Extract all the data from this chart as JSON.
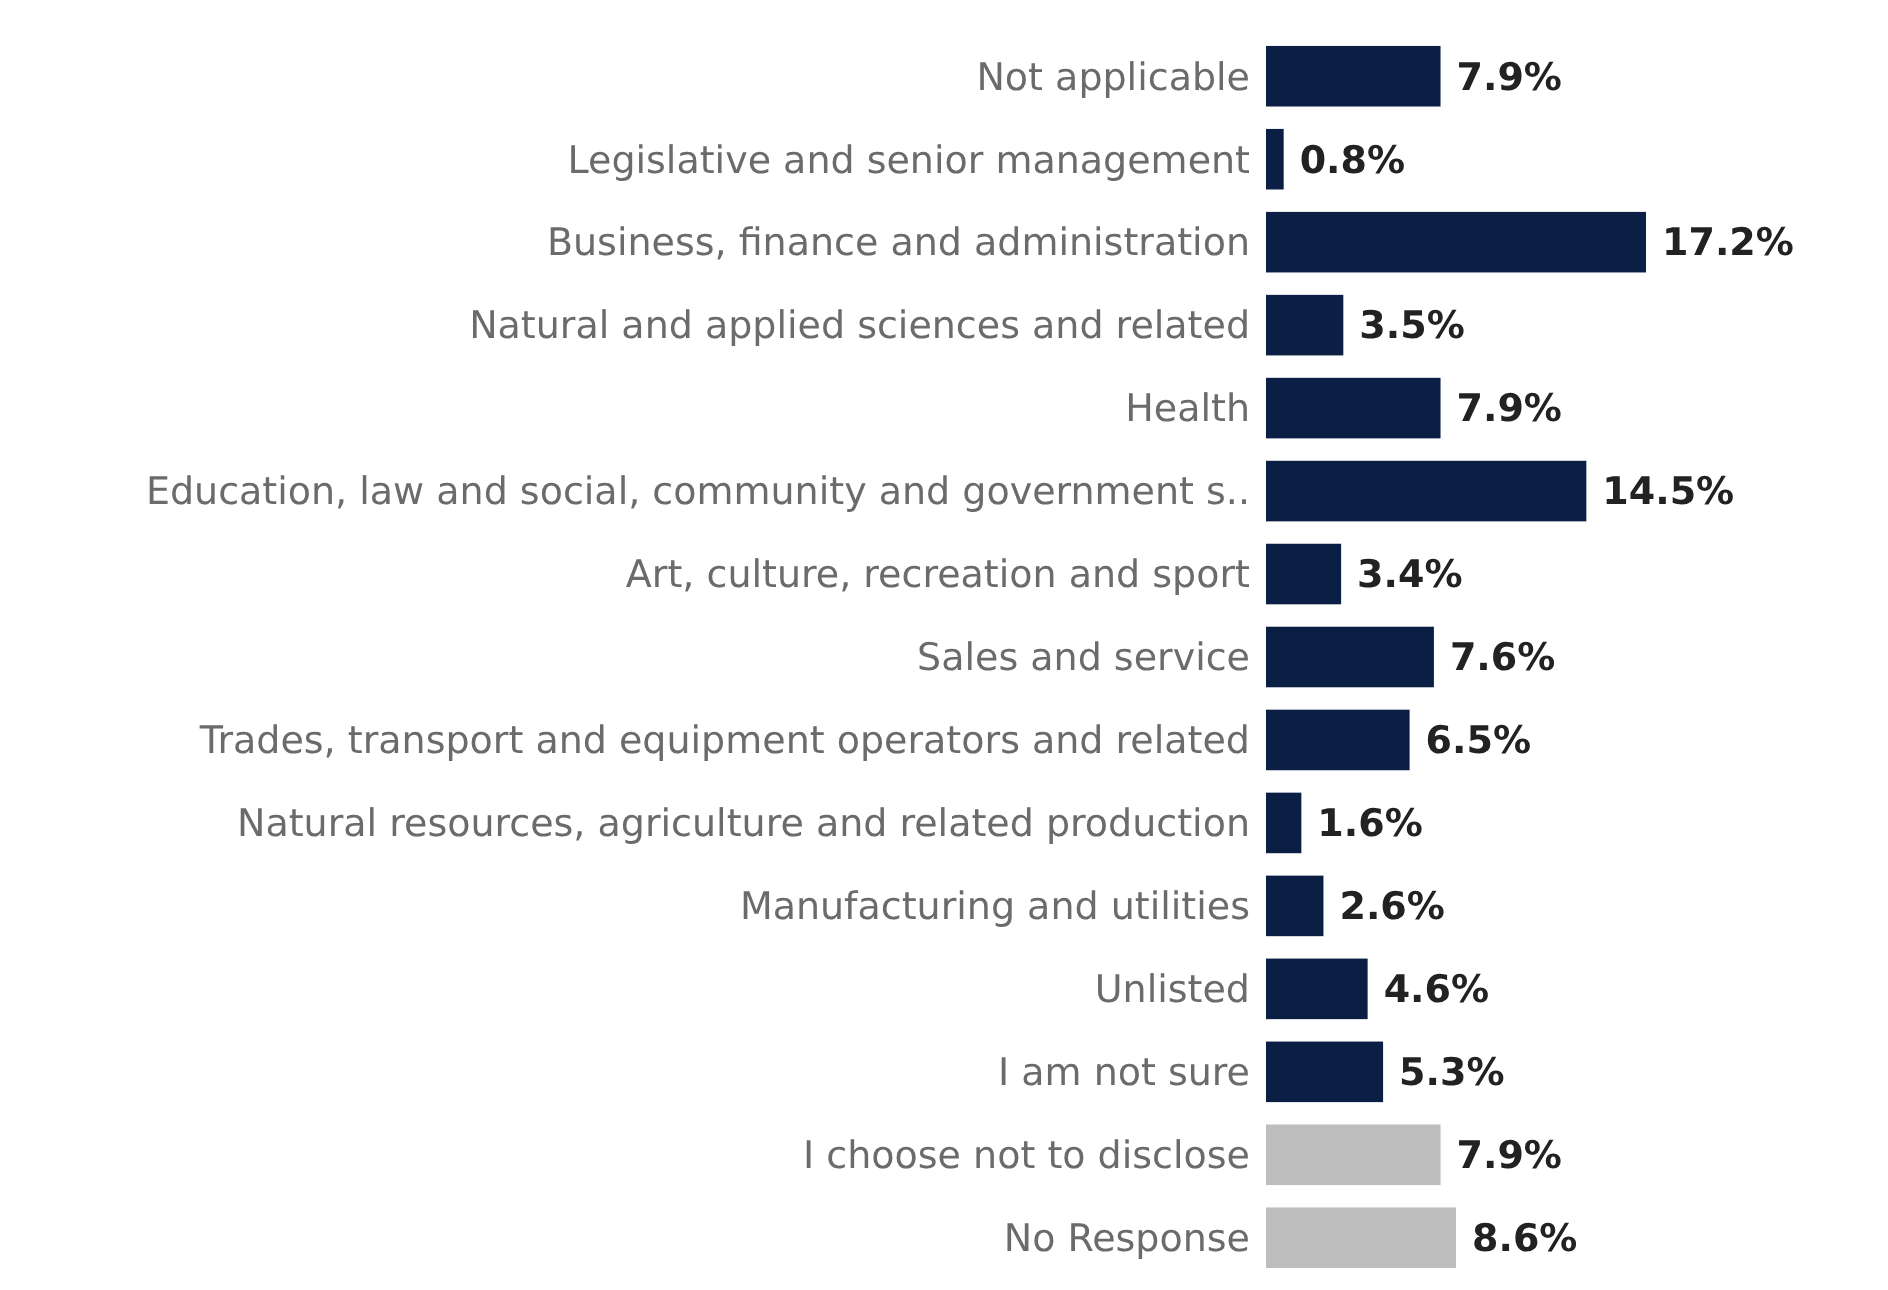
{
  "chart_data": {
    "type": "bar",
    "orientation": "horizontal",
    "categories": [
      "Not applicable",
      "Legislative and senior management",
      "Business, finance and administration",
      "Natural and applied sciences and related",
      "Health",
      "Education, law and social, community and government s..",
      "Art, culture, recreation and sport",
      "Sales and service",
      "Trades, transport and equipment operators and related",
      "Natural resources, agriculture and related production",
      "Manufacturing and utilities",
      "Unlisted",
      "I am not sure",
      "I choose not to disclose",
      "No Response"
    ],
    "values": [
      7.9,
      0.8,
      17.2,
      3.5,
      7.9,
      14.5,
      3.4,
      7.6,
      6.5,
      1.6,
      2.6,
      4.6,
      5.3,
      7.9,
      8.6
    ],
    "value_labels": [
      "7.9%",
      "0.8%",
      "17.2%",
      "3.5%",
      "7.9%",
      "14.5%",
      "3.4%",
      "7.6%",
      "6.5%",
      "1.6%",
      "2.6%",
      "4.6%",
      "5.3%",
      "7.9%",
      "8.6%"
    ],
    "colors": [
      "#0b1f44",
      "#0b1f44",
      "#0b1f44",
      "#0b1f44",
      "#0b1f44",
      "#0b1f44",
      "#0b1f44",
      "#0b1f44",
      "#0b1f44",
      "#0b1f44",
      "#0b1f44",
      "#0b1f44",
      "#0b1f44",
      "#bdbdbd",
      "#bdbdbd"
    ],
    "tick_labels": "y"
  }
}
